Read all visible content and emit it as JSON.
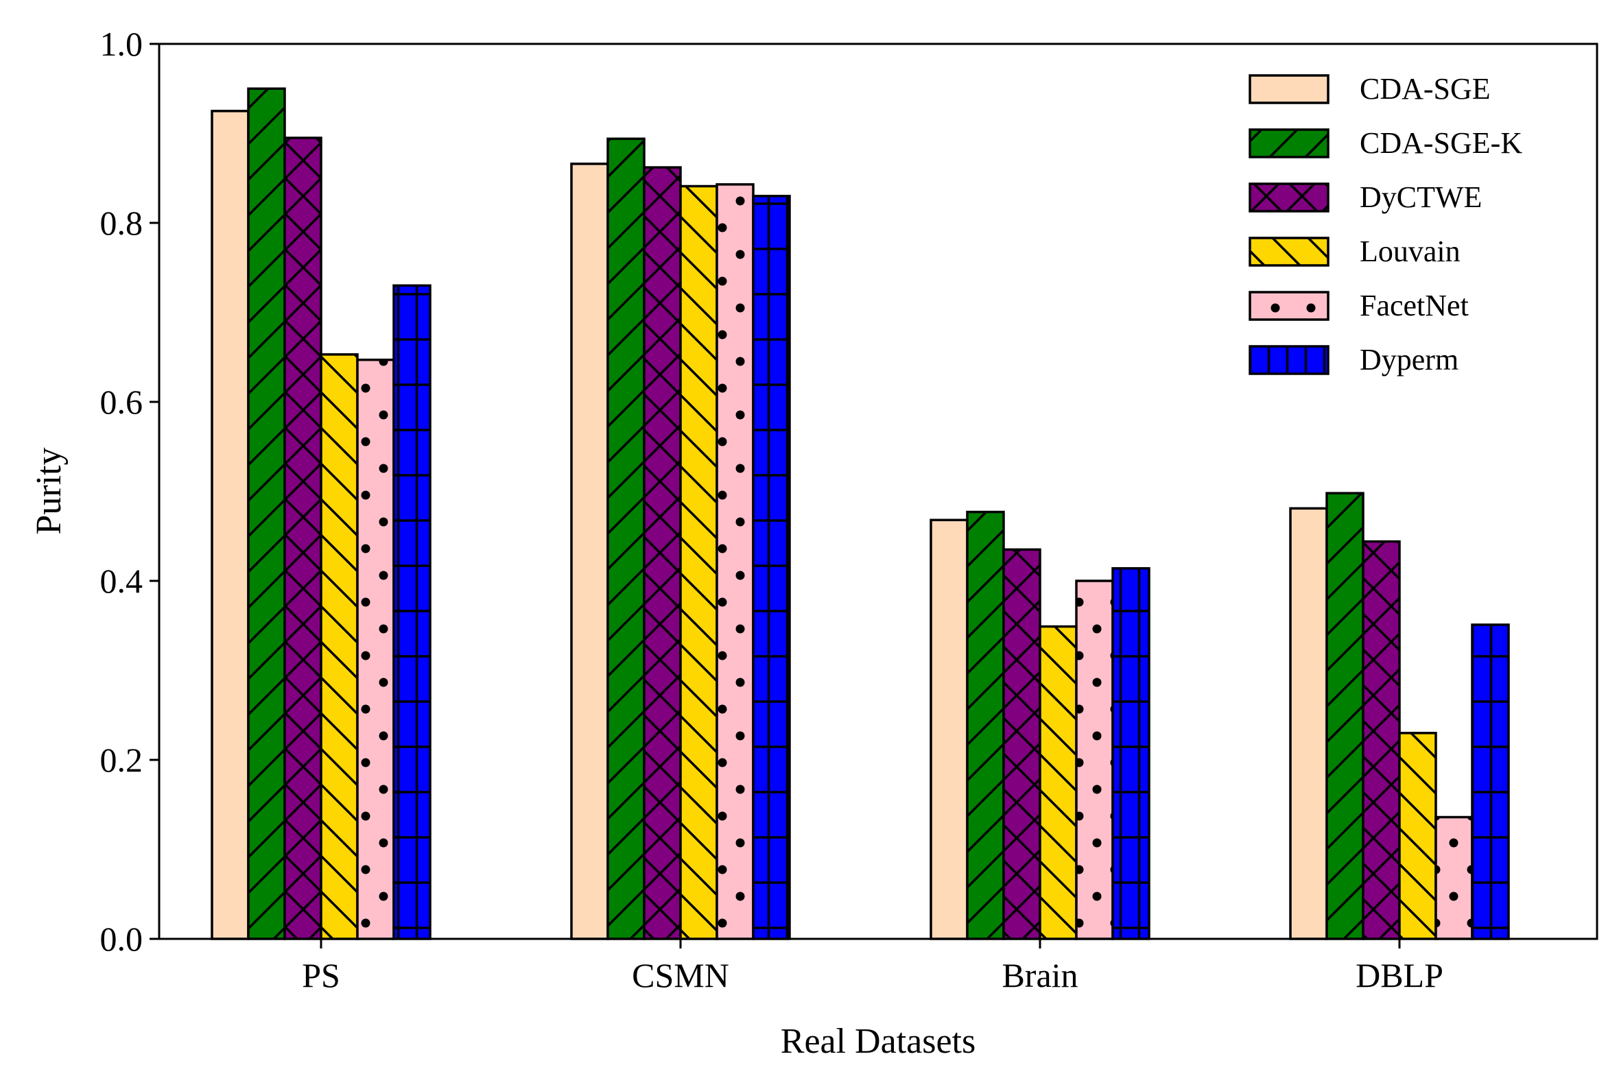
{
  "chart_data": {
    "type": "bar",
    "title": "",
    "xlabel": "Real Datasets",
    "ylabel": "Purity",
    "ylim": [
      0,
      1.0
    ],
    "yticks": [
      "0.0",
      "0.2",
      "0.4",
      "0.6",
      "0.8",
      "1.0"
    ],
    "grid": false,
    "legend_position": "top-right",
    "categories": [
      "PS",
      "CSMN",
      "Brain",
      "DBLP"
    ],
    "series": [
      {
        "name": "CDA-SGE",
        "color": "#ffdab9",
        "hatch": "none",
        "values": [
          0.925,
          0.866,
          0.468,
          0.481
        ]
      },
      {
        "name": "CDA-SGE-K",
        "color": "#008000",
        "hatch": "slash",
        "values": [
          0.95,
          0.894,
          0.477,
          0.498
        ]
      },
      {
        "name": "DyCTWE",
        "color": "#800080",
        "hatch": "cross",
        "values": [
          0.895,
          0.862,
          0.435,
          0.444
        ]
      },
      {
        "name": "Louvain",
        "color": "#ffd700",
        "hatch": "backslash",
        "values": [
          0.653,
          0.841,
          0.349,
          0.23
        ]
      },
      {
        "name": "FacetNet",
        "color": "#ffc0cb",
        "hatch": "dots",
        "values": [
          0.647,
          0.843,
          0.4,
          0.136
        ]
      },
      {
        "name": "Dyperm",
        "color": "#0000ff",
        "hatch": "grid",
        "values": [
          0.73,
          0.83,
          0.414,
          0.351
        ]
      }
    ]
  }
}
